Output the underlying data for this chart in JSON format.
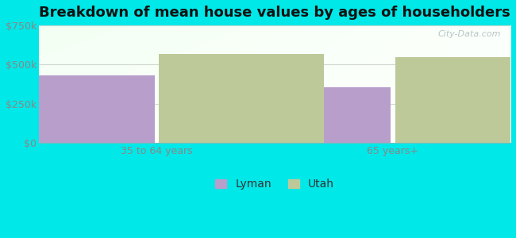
{
  "title": "Breakdown of mean house values by ages of householders",
  "categories": [
    "35 to 64 years",
    "65 years+"
  ],
  "series": [
    {
      "name": "Lyman",
      "values": [
        430000,
        355000
      ],
      "color": "#b89ecb"
    },
    {
      "name": "Utah",
      "values": [
        570000,
        550000
      ],
      "color": "#bec99a"
    }
  ],
  "ylim": [
    0,
    750000
  ],
  "yticks": [
    0,
    250000,
    500000,
    750000
  ],
  "ytick_labels": [
    "$0",
    "$250k",
    "$500k",
    "$750k"
  ],
  "background_outer": "#00e8e8",
  "bar_width": 0.35,
  "title_fontsize": 13,
  "tick_fontsize": 9,
  "legend_fontsize": 10,
  "watermark": "City-Data.com"
}
